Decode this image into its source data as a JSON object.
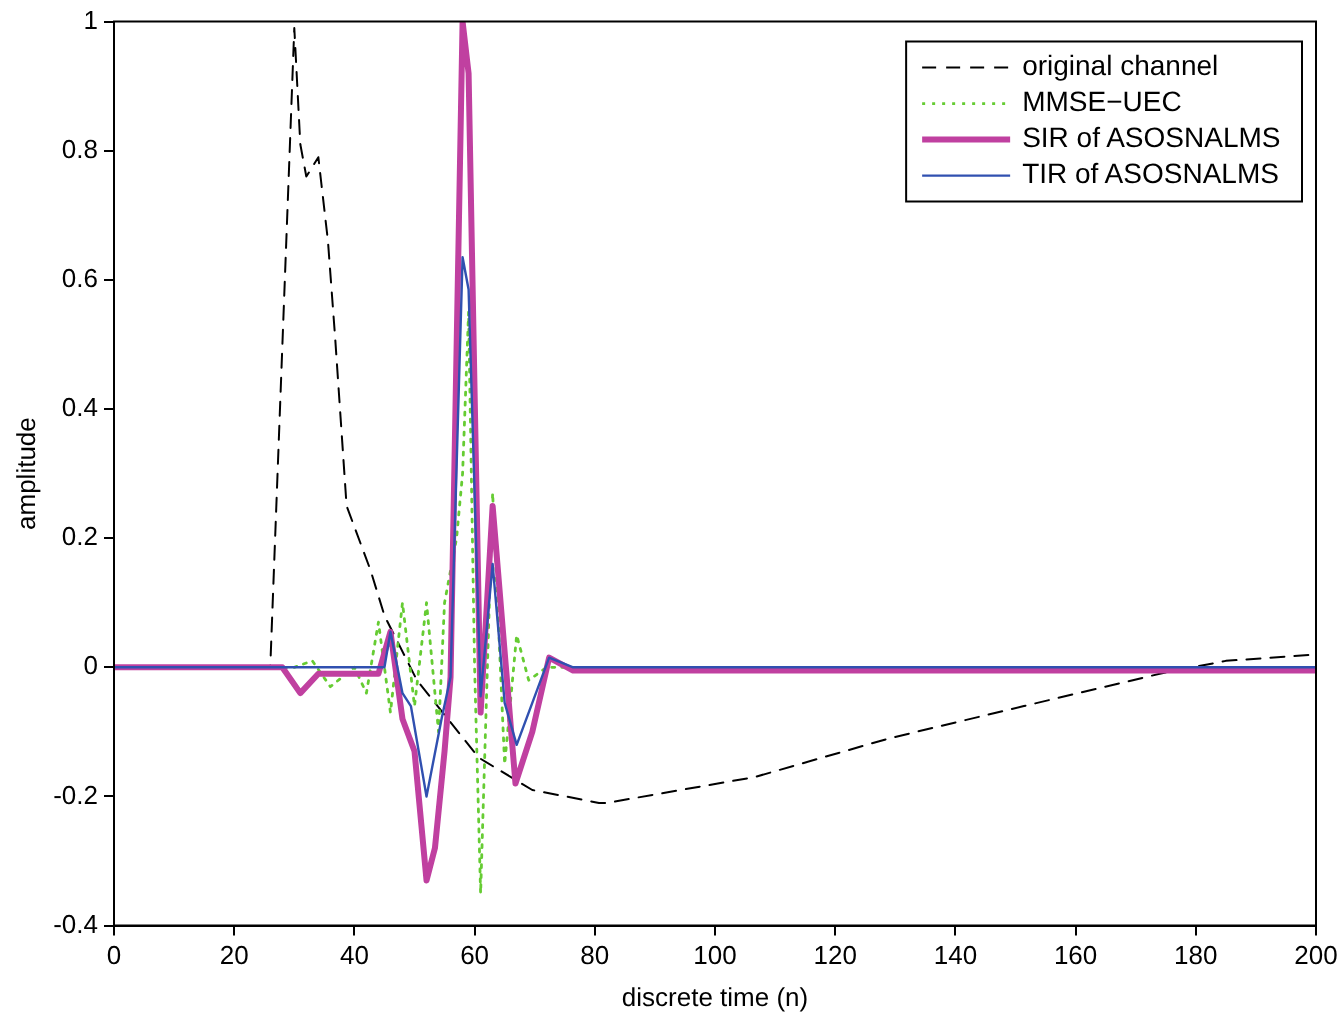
{
  "chart_data": {
    "type": "line",
    "xlabel": "discrete time (n)",
    "ylabel": "amplitude",
    "xlim": [
      0,
      200
    ],
    "xticks": [
      0,
      20,
      40,
      60,
      80,
      100,
      120,
      140,
      160,
      180,
      200
    ],
    "ylim": [
      -0.4,
      1
    ],
    "yticks": [
      -0.4,
      -0.2,
      0,
      0.2,
      0.4,
      0.6,
      0.8,
      1
    ],
    "grid": false,
    "legend": "top right",
    "marker": "none",
    "series": [
      {
        "name": "original channel",
        "color": "#000000",
        "line_style": "dashed",
        "x": [
          0,
          26,
          30,
          31,
          32,
          34,
          35.6,
          36.8,
          38.7,
          42.7,
          45,
          50.4,
          60.7,
          69.6,
          80.7,
          82,
          106.6,
          129,
          151.4,
          174,
          185,
          200
        ],
        "values": [
          0,
          0,
          0.99,
          0.81,
          0.76,
          0.79,
          0.66,
          0.51,
          0.25,
          0.15,
          0.08,
          -0.02,
          -0.14,
          -0.19,
          -0.21,
          -0.21,
          -0.17,
          -0.11,
          -0.06,
          -0.01,
          0.01,
          0.02
        ]
      },
      {
        "name": "MMSE−UEC",
        "color": "#66cc33",
        "line_style": "dotted",
        "x": [
          0,
          30,
          33,
          36,
          40,
          42,
          44,
          46,
          48,
          50,
          52,
          54,
          55,
          57,
          58,
          59,
          60,
          61,
          63,
          65,
          67,
          69,
          72,
          200
        ],
        "values": [
          0,
          0,
          0.01,
          -0.03,
          0,
          -0.04,
          0.07,
          -0.07,
          0.1,
          -0.06,
          0.1,
          -0.1,
          0.1,
          0.2,
          0.3,
          0.55,
          0,
          -0.35,
          0.27,
          -0.15,
          0.05,
          -0.02,
          0,
          0
        ]
      },
      {
        "name": "SIR of ASOSNALMS",
        "color": "#c040a0",
        "line_style": "solid",
        "x": [
          0,
          28,
          31,
          34,
          44,
          46,
          48,
          50,
          52,
          53.4,
          55,
          56,
          58,
          59,
          61,
          63,
          66.8,
          69.6,
          72.4,
          76.4,
          200
        ],
        "values": [
          0,
          0,
          -0.04,
          -0.01,
          -0.01,
          0.055,
          -0.08,
          -0.13,
          -0.33,
          -0.28,
          -0.13,
          -0.015,
          1,
          0.92,
          -0.07,
          0.25,
          -0.18,
          -0.1,
          0.015,
          -0.005,
          -0.005
        ]
      },
      {
        "name": "TIR of ASOSNALMS",
        "color": "#3050b0",
        "line_style": "solid",
        "x": [
          0,
          45,
          46,
          48,
          49.4,
          52,
          54.5,
          56,
          58,
          59,
          61,
          63,
          65,
          67,
          69.6,
          72.4,
          76.4,
          200
        ],
        "values": [
          0,
          0,
          0.055,
          -0.04,
          -0.06,
          -0.2,
          -0.08,
          -0.015,
          0.635,
          0.585,
          -0.045,
          0.16,
          -0.055,
          -0.12,
          -0.055,
          0.015,
          0,
          0
        ]
      }
    ]
  }
}
